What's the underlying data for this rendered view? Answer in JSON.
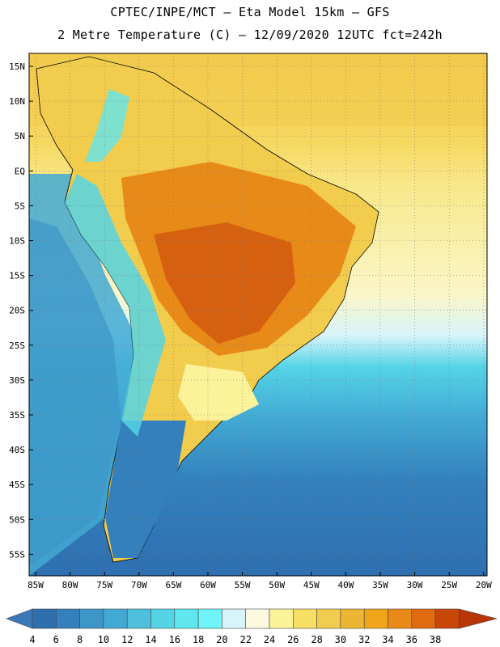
{
  "header": {
    "line1": "CPTEC/INPE/MCT –  Eta Model 15km – GFS",
    "line2": "2 Metre Temperature (C) – 12/09/2020 12UTC fct=242h"
  },
  "map": {
    "region": "South America",
    "lat_labels": [
      "15N",
      "10N",
      "5N",
      "EQ",
      "5S",
      "10S",
      "15S",
      "20S",
      "25S",
      "30S",
      "35S",
      "40S",
      "45S",
      "50S",
      "55S"
    ],
    "lon_labels": [
      "85W",
      "80W",
      "75W",
      "70W",
      "65W",
      "60W",
      "55W",
      "50W",
      "45W",
      "40W",
      "35W",
      "30W",
      "25W",
      "20W"
    ]
  },
  "legend": {
    "values": [
      "4",
      "6",
      "8",
      "10",
      "12",
      "14",
      "16",
      "18",
      "20",
      "22",
      "24",
      "26",
      "28",
      "30",
      "32",
      "34",
      "36",
      "38"
    ],
    "colors": [
      "#3a78b8",
      "#2e6fb0",
      "#3380bd",
      "#3d95c8",
      "#42a9d4",
      "#4ec0dd",
      "#55d4e6",
      "#5fe6ef",
      "#6ff5f7",
      "#d8f4fb",
      "#fdf8e0",
      "#fbf29a",
      "#f7df66",
      "#f2cc4d",
      "#ecb633",
      "#efa517",
      "#e88a18",
      "#e06a10",
      "#c84608",
      "#b83505"
    ]
  }
}
